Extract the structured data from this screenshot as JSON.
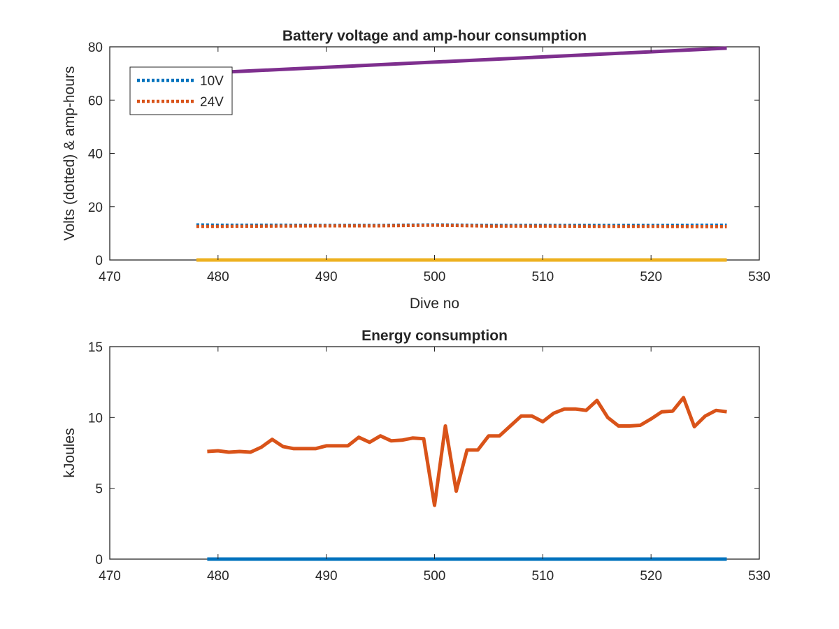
{
  "chart_data": [
    {
      "type": "line",
      "title": "Battery voltage and amp-hour consumption",
      "xlabel": "Dive no",
      "ylabel": "Volts (dotted) & amp-hours",
      "xlim": [
        470,
        530
      ],
      "ylim": [
        0,
        80
      ],
      "xticks": [
        470,
        480,
        490,
        500,
        510,
        520,
        530
      ],
      "yticks": [
        0,
        20,
        40,
        60,
        80
      ],
      "grid": false,
      "legend": {
        "placement": "top-left",
        "entries": [
          "10V",
          "24V"
        ]
      },
      "series": [
        {
          "name": "10V",
          "style": "dotted",
          "color": "#0072BD",
          "x": [
            478,
            480,
            485,
            490,
            495,
            500,
            505,
            510,
            515,
            520,
            525,
            527
          ],
          "y": [
            13.2,
            13.1,
            13.1,
            13.0,
            13.0,
            13.2,
            13.0,
            13.0,
            13.0,
            13.0,
            13.1,
            13.1
          ]
        },
        {
          "name": "24V",
          "style": "dotted",
          "color": "#D95319",
          "x": [
            478,
            480,
            485,
            490,
            495,
            500,
            502,
            505,
            510,
            515,
            520,
            525,
            527
          ],
          "y": [
            12.6,
            12.6,
            12.7,
            12.8,
            12.8,
            13.0,
            12.9,
            12.7,
            12.7,
            12.6,
            12.6,
            12.5,
            12.5
          ]
        },
        {
          "style": "solid",
          "color": "#EDB120",
          "x": [
            478,
            527
          ],
          "y": [
            0,
            0
          ]
        },
        {
          "style": "solid",
          "color": "#7E2F8E",
          "x": [
            478,
            527
          ],
          "y": [
            70,
            79.5
          ]
        }
      ]
    },
    {
      "type": "line",
      "title": "Energy consumption",
      "xlabel": "",
      "ylabel": "kJoules",
      "xlim": [
        470,
        530
      ],
      "ylim": [
        0,
        15
      ],
      "xticks": [
        470,
        480,
        490,
        500,
        510,
        520,
        530
      ],
      "yticks": [
        0,
        5,
        10,
        15
      ],
      "grid": false,
      "series": [
        {
          "style": "solid",
          "color": "#0072BD",
          "x": [
            479,
            527
          ],
          "y": [
            0,
            0
          ]
        },
        {
          "style": "solid",
          "color": "#D95319",
          "x": [
            479,
            480,
            481,
            482,
            483,
            484,
            485,
            486,
            487,
            488,
            489,
            490,
            491,
            492,
            493,
            494,
            495,
            496,
            497,
            498,
            499,
            500,
            501,
            502,
            503,
            504,
            505,
            506,
            507,
            508,
            509,
            510,
            511,
            512,
            513,
            514,
            515,
            516,
            517,
            518,
            519,
            520,
            521,
            522,
            523,
            524,
            525,
            526,
            527
          ],
          "y": [
            7.6,
            7.65,
            7.55,
            7.6,
            7.55,
            7.9,
            8.45,
            7.95,
            7.8,
            7.8,
            7.8,
            8.0,
            8.0,
            8.0,
            8.6,
            8.25,
            8.7,
            8.35,
            8.4,
            8.55,
            8.5,
            3.8,
            9.4,
            4.8,
            7.7,
            7.7,
            8.7,
            8.7,
            9.4,
            10.1,
            10.1,
            9.7,
            10.3,
            10.6,
            10.6,
            10.5,
            11.2,
            10.0,
            9.4,
            9.4,
            9.45,
            9.9,
            10.4,
            10.45,
            11.4,
            9.35,
            10.1,
            10.5,
            10.4
          ]
        }
      ]
    }
  ]
}
